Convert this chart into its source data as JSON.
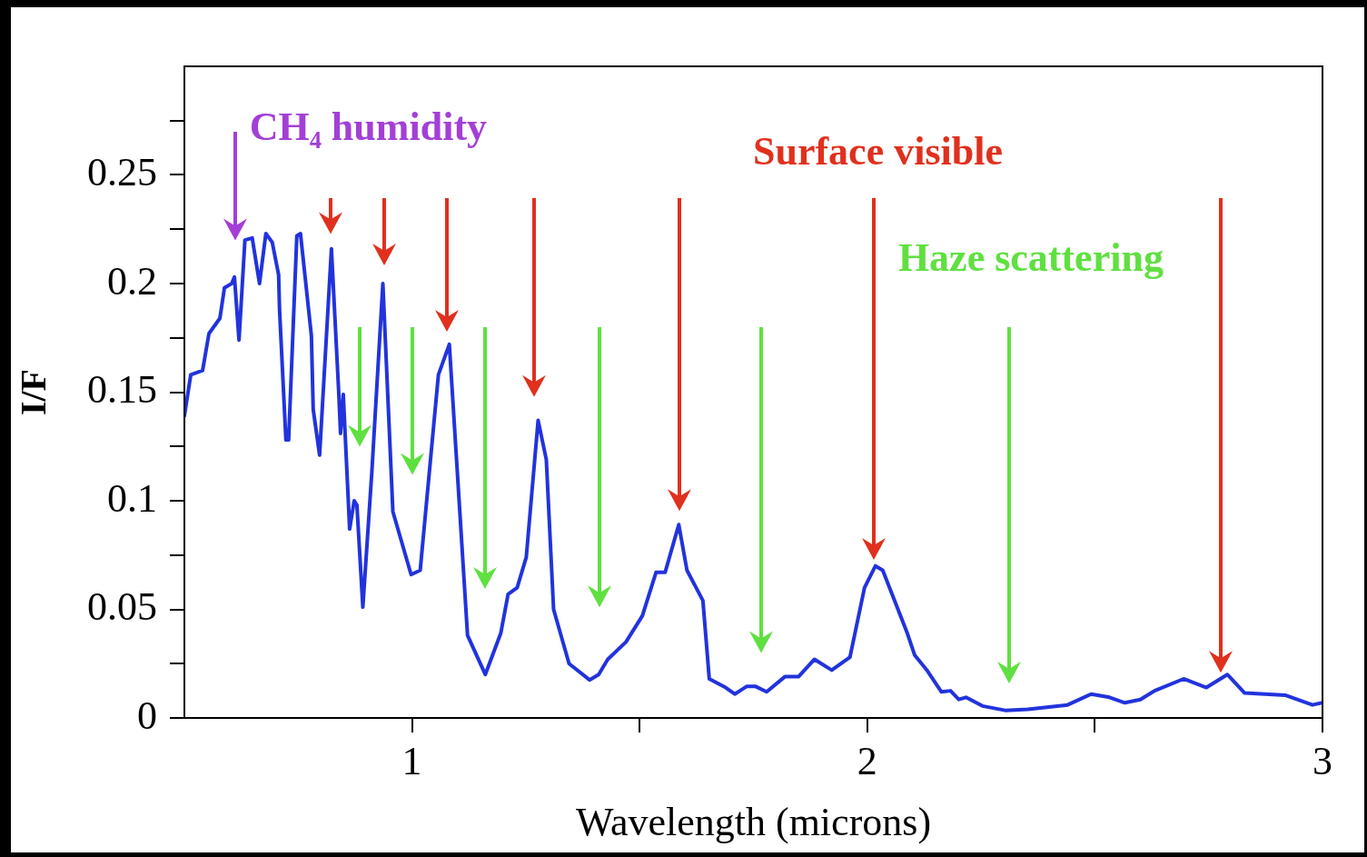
{
  "chart_data": {
    "type": "line",
    "xlabel": "Wavelength (microns)",
    "ylabel": "I/F",
    "annotations": [
      "CH₄ humidity",
      "Surface visible",
      "Haze scattering"
    ],
    "xlim": [
      0.5,
      3
    ],
    "xticks": [
      1,
      {
        "value": 1.5,
        "label": null
      },
      2,
      {
        "value": 2.5,
        "label": null
      },
      3
    ],
    "ylim": [
      0,
      0.3
    ],
    "yticks": [
      0,
      {
        "value": 0.025,
        "label": null
      },
      0.05,
      {
        "value": 0.075,
        "label": null
      },
      0.1,
      {
        "value": 0.125,
        "label": null
      },
      0.15,
      {
        "value": 0.175,
        "label": null
      },
      0.2,
      {
        "value": 0.225,
        "label": null
      },
      0.25,
      {
        "value": 0.275,
        "label": null
      }
    ],
    "grid": false,
    "legend": false,
    "marker": "none",
    "line_style": "solid",
    "series": [
      {
        "color": "#2233dd",
        "x": [
          0.5,
          0.514,
          0.54,
          0.554,
          0.578,
          0.588,
          0.604,
          0.61,
          0.62,
          0.633,
          0.649,
          0.665,
          0.679,
          0.693,
          0.707,
          0.709,
          0.723,
          0.729,
          0.747,
          0.755,
          0.779,
          0.783,
          0.797,
          0.823,
          0.839,
          0.843,
          0.849,
          0.863,
          0.873,
          0.879,
          0.892,
          0.912,
          0.936,
          0.958,
          0.998,
          1.018,
          1.058,
          1.082,
          1.122,
          1.161,
          1.195,
          1.211,
          1.231,
          1.251,
          1.277,
          1.295,
          1.311,
          1.345,
          1.39,
          1.41,
          1.43,
          1.47,
          1.506,
          1.536,
          1.556,
          1.586,
          1.604,
          1.639,
          1.653,
          1.689,
          1.709,
          1.735,
          1.755,
          1.779,
          1.819,
          1.849,
          1.884,
          1.922,
          1.962,
          1.994,
          2.018,
          2.034,
          2.088,
          2.104,
          2.131,
          2.163,
          2.183,
          2.201,
          2.217,
          2.253,
          2.303,
          2.353,
          2.44,
          2.492,
          2.532,
          2.566,
          2.6,
          2.631,
          2.695,
          2.745,
          2.791,
          2.829,
          2.918,
          2.978,
          3.0
        ],
        "values": [
          0.139,
          0.158,
          0.16,
          0.177,
          0.184,
          0.198,
          0.2,
          0.203,
          0.174,
          0.22,
          0.221,
          0.2,
          0.223,
          0.219,
          0.204,
          0.188,
          0.128,
          0.128,
          0.222,
          0.223,
          0.176,
          0.142,
          0.121,
          0.216,
          0.15,
          0.131,
          0.149,
          0.087,
          0.1,
          0.098,
          0.051,
          0.114,
          0.2,
          0.095,
          0.066,
          0.068,
          0.158,
          0.172,
          0.038,
          0.02,
          0.039,
          0.057,
          0.06,
          0.074,
          0.137,
          0.119,
          0.05,
          0.025,
          0.0175,
          0.02,
          0.027,
          0.035,
          0.047,
          0.067,
          0.067,
          0.089,
          0.068,
          0.054,
          0.018,
          0.014,
          0.011,
          0.0145,
          0.0145,
          0.012,
          0.019,
          0.019,
          0.027,
          0.022,
          0.028,
          0.06,
          0.07,
          0.068,
          0.039,
          0.029,
          0.022,
          0.012,
          0.0125,
          0.0085,
          0.0095,
          0.0055,
          0.0035,
          0.004,
          0.006,
          0.011,
          0.0095,
          0.007,
          0.0085,
          0.0125,
          0.018,
          0.014,
          0.02,
          0.0115,
          0.0105,
          0.006,
          0.007
        ]
      }
    ]
  }
}
